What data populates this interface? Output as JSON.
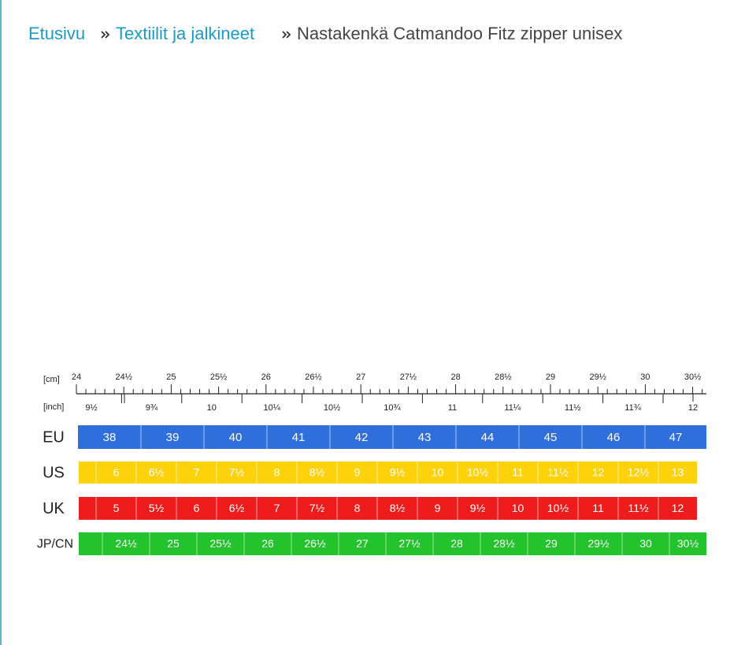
{
  "breadcrumb": {
    "items": [
      "Etusivu",
      "Textiilit ja jalkineet",
      "Nastakenkä Catmandoo Fitz zipper unisex"
    ]
  },
  "size_chart": {
    "cm_label": "[cm]",
    "cm_ticks": [
      "24",
      "24½",
      "25",
      "25½",
      "26",
      "26½",
      "27",
      "27½",
      "28",
      "28½",
      "29",
      "29½",
      "30",
      "30½"
    ],
    "inch_label": "[inch]",
    "inch_ticks": [
      "9½",
      "9¾",
      "10",
      "10¼",
      "10½",
      "10¾",
      "11",
      "11¼",
      "11½",
      "11¾",
      "12"
    ],
    "rows": [
      {
        "label": "EU",
        "cells": [
          "38",
          "39",
          "40",
          "41",
          "42",
          "43",
          "44",
          "45",
          "46",
          "47"
        ]
      },
      {
        "label": "US",
        "cells": [
          "6",
          "6½",
          "7",
          "7½",
          "8",
          "8½",
          "9",
          "9½",
          "10",
          "10½",
          "11",
          "11½",
          "12",
          "12½",
          "13"
        ]
      },
      {
        "label": "UK",
        "cells": [
          "5",
          "5½",
          "6",
          "6½",
          "7",
          "7½",
          "8",
          "8½",
          "9",
          "9½",
          "10",
          "10½",
          "11",
          "11½",
          "12"
        ]
      },
      {
        "label": "JP/CN",
        "cells": [
          "24½",
          "25",
          "25½",
          "26",
          "26½",
          "27",
          "27½",
          "28",
          "28½",
          "29",
          "29½",
          "30",
          "30½"
        ]
      }
    ]
  }
}
